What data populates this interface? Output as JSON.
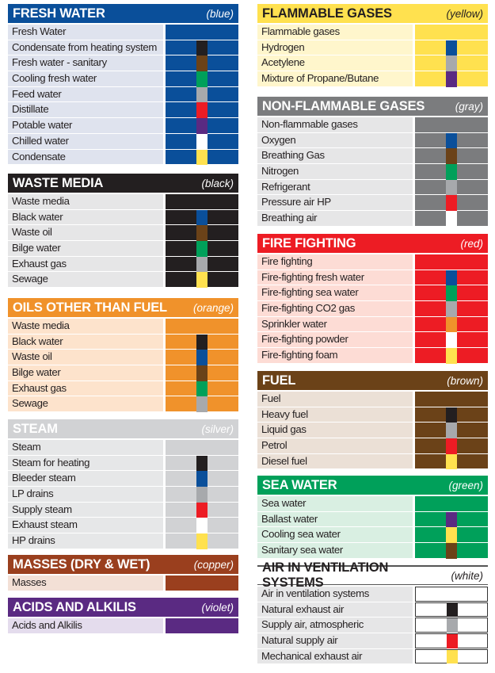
{
  "sections": [
    {
      "title": "FRESH WATER",
      "color_name": "(blue)",
      "bg": "#0a4f9a",
      "fg": "#ffffff",
      "row_bg": "#dfe3ee",
      "rows": [
        {
          "label": "Fresh Water",
          "stripe": null
        },
        {
          "label": "Condensate from heating system",
          "stripe": "#231f20"
        },
        {
          "label": "Fresh water - sanitary",
          "stripe": "#6b4218"
        },
        {
          "label": "Cooling fresh water",
          "stripe": "#00a05a"
        },
        {
          "label": "Feed water",
          "stripe": "#a7a9ac"
        },
        {
          "label": "Distillate",
          "stripe": "#ed1c24"
        },
        {
          "label": "Potable water",
          "stripe": "#5a2a82"
        },
        {
          "label": "Chilled water",
          "stripe": "#ffffff"
        },
        {
          "label": "Condensate",
          "stripe": "#ffe14f"
        }
      ]
    },
    {
      "title": "WASTE MEDIA",
      "color_name": "(black)",
      "bg": "#231f20",
      "fg": "#ffffff",
      "row_bg": "#e6e6e7",
      "rows": [
        {
          "label": "Waste media",
          "stripe": null
        },
        {
          "label": "Black water",
          "stripe": "#0a4f9a"
        },
        {
          "label": "Waste oil",
          "stripe": "#6b4218"
        },
        {
          "label": "Bilge water",
          "stripe": "#00a05a"
        },
        {
          "label": "Exhaust gas",
          "stripe": "#a7a9ac"
        },
        {
          "label": "Sewage",
          "stripe": "#ffe14f"
        }
      ]
    },
    {
      "title": "OILS OTHER THAN FUEL",
      "color_name": "(orange)",
      "bg": "#f0922b",
      "fg": "#ffffff",
      "row_bg": "#fde3cc",
      "rows": [
        {
          "label": "Waste media",
          "stripe": null
        },
        {
          "label": "Black water",
          "stripe": "#231f20"
        },
        {
          "label": "Waste oil",
          "stripe": "#0a4f9a"
        },
        {
          "label": "Bilge water",
          "stripe": "#6b4218"
        },
        {
          "label": "Exhaust gas",
          "stripe": "#00a05a"
        },
        {
          "label": "Sewage",
          "stripe": "#a7a9ac"
        }
      ]
    },
    {
      "title": "STEAM",
      "color_name": "(silver)",
      "bg": "#d1d2d4",
      "fg": "#ffffff",
      "row_bg": "#e6e7e8",
      "rows": [
        {
          "label": "Steam",
          "stripe": null
        },
        {
          "label": "Steam for heating",
          "stripe": "#231f20"
        },
        {
          "label": "Bleeder steam",
          "stripe": "#0a4f9a"
        },
        {
          "label": "LP drains",
          "stripe": "#a7a9ac"
        },
        {
          "label": "Supply steam",
          "stripe": "#ed1c24"
        },
        {
          "label": "Exhaust steam",
          "stripe": "#ffffff"
        },
        {
          "label": "HP drains",
          "stripe": "#ffe14f"
        }
      ]
    },
    {
      "title": "MASSES (DRY & WET)",
      "color_name": "(copper)",
      "bg": "#9a3f1e",
      "fg": "#ffffff",
      "row_bg": "#f3e0d6",
      "rows": [
        {
          "label": "Masses",
          "stripe": null
        }
      ]
    },
    {
      "title": "ACIDS AND ALKILIS",
      "color_name": "(violet)",
      "bg": "#5a2a82",
      "fg": "#ffffff",
      "row_bg": "#e4dced",
      "rows": [
        {
          "label": "Acids and Alkilis",
          "stripe": null
        }
      ]
    },
    {
      "title": "FLAMMABLE GASES",
      "color_name": "(yellow)",
      "bg": "#ffe14f",
      "fg": "#231f20",
      "row_bg": "#fff6cc",
      "rows": [
        {
          "label": "Flammable gases",
          "stripe": null
        },
        {
          "label": "Hydrogen",
          "stripe": "#0a4f9a"
        },
        {
          "label": "Acetylene",
          "stripe": "#a7a9ac"
        },
        {
          "label": "Mixture of Propane/Butane",
          "stripe": "#5a2a82"
        }
      ]
    },
    {
      "title": "NON-FLAMMABLE GASES",
      "color_name": "(gray)",
      "bg": "#7b7c7e",
      "fg": "#ffffff",
      "row_bg": "#e6e6e7",
      "rows": [
        {
          "label": "Non-flammable gases",
          "stripe": null
        },
        {
          "label": "Oxygen",
          "stripe": "#0a4f9a"
        },
        {
          "label": "Breathing Gas",
          "stripe": "#6b4218"
        },
        {
          "label": "Nitrogen",
          "stripe": "#00a05a"
        },
        {
          "label": "Refrigerant",
          "stripe": "#a7a9ac"
        },
        {
          "label": "Pressure air HP",
          "stripe": "#ed1c24"
        },
        {
          "label": "Breathing air",
          "stripe": "#ffffff"
        }
      ]
    },
    {
      "title": "FIRE FIGHTING",
      "color_name": "(red)",
      "bg": "#ed1c24",
      "fg": "#ffffff",
      "row_bg": "#fddcd5",
      "rows": [
        {
          "label": "Fire fighting",
          "stripe": null
        },
        {
          "label": "Fire-fighting fresh water",
          "stripe": "#0a4f9a"
        },
        {
          "label": "Fire-fighting sea water",
          "stripe": "#00a05a"
        },
        {
          "label": "Fire-fighting CO2 gas",
          "stripe": "#a7a9ac"
        },
        {
          "label": "Sprinkler water",
          "stripe": "#f0922b"
        },
        {
          "label": "Fire-fighting powder",
          "stripe": "#ffffff"
        },
        {
          "label": "Fire-fighting foam",
          "stripe": "#ffe14f"
        }
      ]
    },
    {
      "title": "FUEL",
      "color_name": "(brown)",
      "bg": "#6b4218",
      "fg": "#ffffff",
      "row_bg": "#ebe0d6",
      "rows": [
        {
          "label": "Fuel",
          "stripe": null
        },
        {
          "label": "Heavy fuel",
          "stripe": "#231f20"
        },
        {
          "label": "Liquid gas",
          "stripe": "#a7a9ac"
        },
        {
          "label": "Petrol",
          "stripe": "#ed1c24"
        },
        {
          "label": "Diesel fuel",
          "stripe": "#ffe14f"
        }
      ]
    },
    {
      "title": "SEA WATER",
      "color_name": "(green)",
      "bg": "#00a05a",
      "fg": "#ffffff",
      "row_bg": "#d9efe2",
      "rows": [
        {
          "label": "Sea water",
          "stripe": null
        },
        {
          "label": "Ballast water",
          "stripe": "#5a2a82"
        },
        {
          "label": "Cooling sea water",
          "stripe": "#ffe14f"
        },
        {
          "label": "Sanitary sea water",
          "stripe": "#6b4218"
        }
      ]
    },
    {
      "title": "AIR IN VENTILATION SYSTEMS",
      "color_name": "(white)",
      "bg": "#ffffff",
      "fg": "#231f20",
      "row_bg": "#e6e6e7",
      "rows": [
        {
          "label": "Air in ventilation systems",
          "stripe": null
        },
        {
          "label": "Natural exhaust air",
          "stripe": "#231f20"
        },
        {
          "label": "Supply air, atmospheric",
          "stripe": "#a7a9ac"
        },
        {
          "label": "Natural supply air",
          "stripe": "#ed1c24"
        },
        {
          "label": "Mechanical exhaust air",
          "stripe": "#ffe14f"
        }
      ]
    }
  ]
}
